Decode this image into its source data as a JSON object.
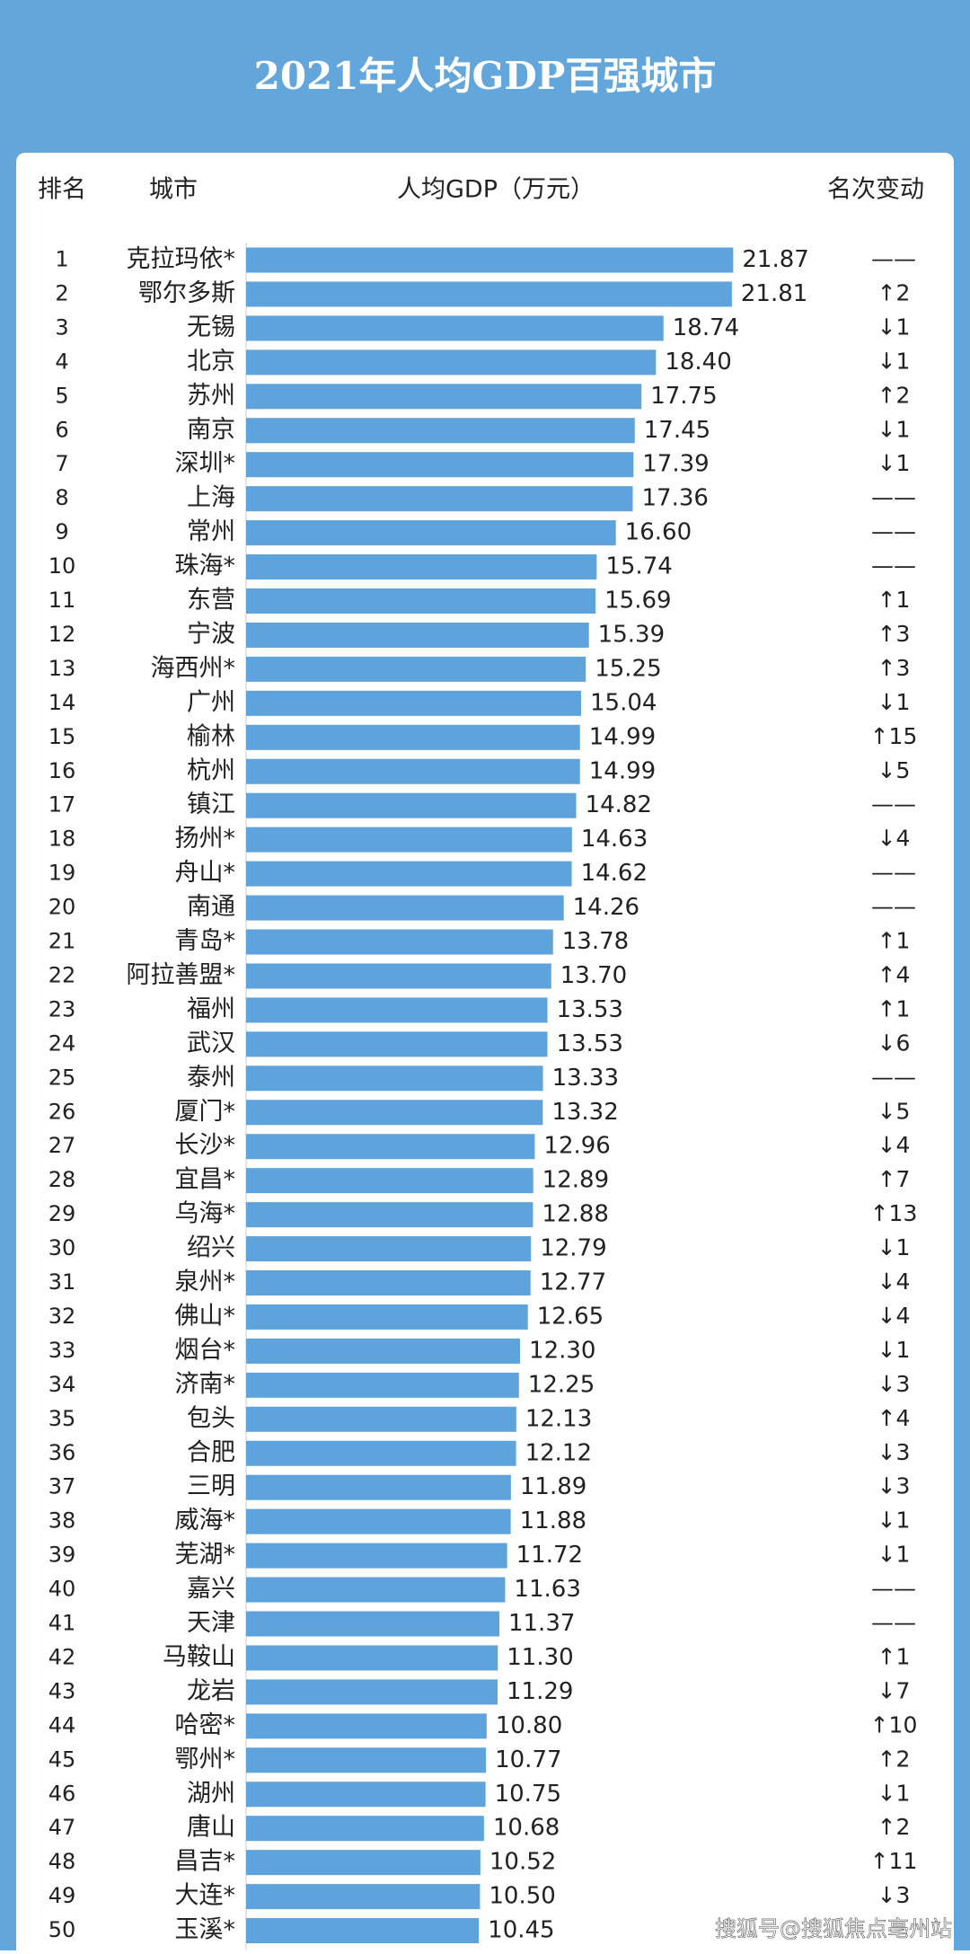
{
  "chart_data": {
    "type": "bar",
    "title": "2021年人均GDP百强城市",
    "headers": [
      "排名",
      "城市",
      "人均GDP（万元）",
      "名次变动"
    ],
    "ranks": [
      1,
      2,
      3,
      4,
      5,
      6,
      7,
      8,
      9,
      10,
      11,
      12,
      13,
      14,
      15,
      16,
      17,
      18,
      19,
      20,
      21,
      22,
      23,
      24,
      25,
      26,
      27,
      28,
      29,
      30,
      31,
      32,
      33,
      34,
      35,
      36,
      37,
      38,
      39,
      40,
      41,
      42,
      43,
      44,
      45,
      46,
      47,
      48,
      49,
      50
    ],
    "categories": [
      "克拉玛依*",
      "鄂尔多斯",
      "无锡",
      "北京",
      "苏州",
      "南京",
      "深圳*",
      "上海",
      "常州",
      "珠海*",
      "东营",
      "宁波",
      "海西州*",
      "广州",
      "榆林",
      "杭州",
      "镇江",
      "扬州*",
      "舟山*",
      "南通",
      "青岛*",
      "阿拉善盟*",
      "福州",
      "武汉",
      "泰州",
      "厦门*",
      "长沙*",
      "宜昌*",
      "乌海*",
      "绍兴",
      "泉州*",
      "佛山*",
      "烟台*",
      "济南*",
      "包头",
      "合肥",
      "三明",
      "威海*",
      "芜湖*",
      "嘉兴",
      "天津",
      "马鞍山",
      "龙岩",
      "哈密*",
      "鄂州*",
      "湖州",
      "唐山",
      "昌吉*",
      "大连*",
      "玉溪*"
    ],
    "values": [
      21.87,
      21.81,
      18.74,
      18.4,
      17.75,
      17.45,
      17.39,
      17.36,
      16.6,
      15.74,
      15.69,
      15.39,
      15.25,
      15.04,
      14.99,
      14.99,
      14.82,
      14.63,
      14.62,
      14.26,
      13.78,
      13.7,
      13.53,
      13.53,
      13.33,
      13.32,
      12.96,
      12.89,
      12.88,
      12.79,
      12.77,
      12.65,
      12.3,
      12.25,
      12.13,
      12.12,
      11.89,
      11.88,
      11.72,
      11.63,
      11.37,
      11.3,
      11.29,
      10.8,
      10.77,
      10.75,
      10.68,
      10.52,
      10.5,
      10.45
    ],
    "value_labels": [
      "21.87",
      "21.81",
      "18.74",
      "18.40",
      "17.75",
      "17.45",
      "17.39",
      "17.36",
      "16.60",
      "15.74",
      "15.69",
      "15.39",
      "15.25",
      "15.04",
      "14.99",
      "14.99",
      "14.82",
      "14.63",
      "14.62",
      "14.26",
      "13.78",
      "13.70",
      "13.53",
      "13.53",
      "13.33",
      "13.32",
      "12.96",
      "12.89",
      "12.88",
      "12.79",
      "12.77",
      "12.65",
      "12.30",
      "12.25",
      "12.13",
      "12.12",
      "11.89",
      "11.88",
      "11.72",
      "11.63",
      "11.37",
      "11.30",
      "11.29",
      "10.80",
      "10.77",
      "10.75",
      "10.68",
      "10.52",
      "10.50",
      "10.45"
    ],
    "changes": [
      "——",
      "↑2",
      "↓1",
      "↓1",
      "↑2",
      "↓1",
      "↓1",
      "——",
      "——",
      "——",
      "↑1",
      "↑3",
      "↑3",
      "↓1",
      "↑15",
      "↓5",
      "——",
      "↓4",
      "——",
      "——",
      "↑1",
      "↑4",
      "↑1",
      "↓6",
      "——",
      "↓5",
      "↓4",
      "↑7",
      "↑13",
      "↓1",
      "↓4",
      "↓4",
      "↓1",
      "↓3",
      "↑4",
      "↓3",
      "↓3",
      "↓1",
      "↓1",
      "——",
      "——",
      "↑1",
      "↓7",
      "↑10",
      "↑2",
      "↓1",
      "↑2",
      "↑11",
      "↓3",
      null
    ],
    "color": "#5fa3dc",
    "background": "#62a6dc",
    "watermark": "搜狐号@搜狐焦点亳州站"
  }
}
